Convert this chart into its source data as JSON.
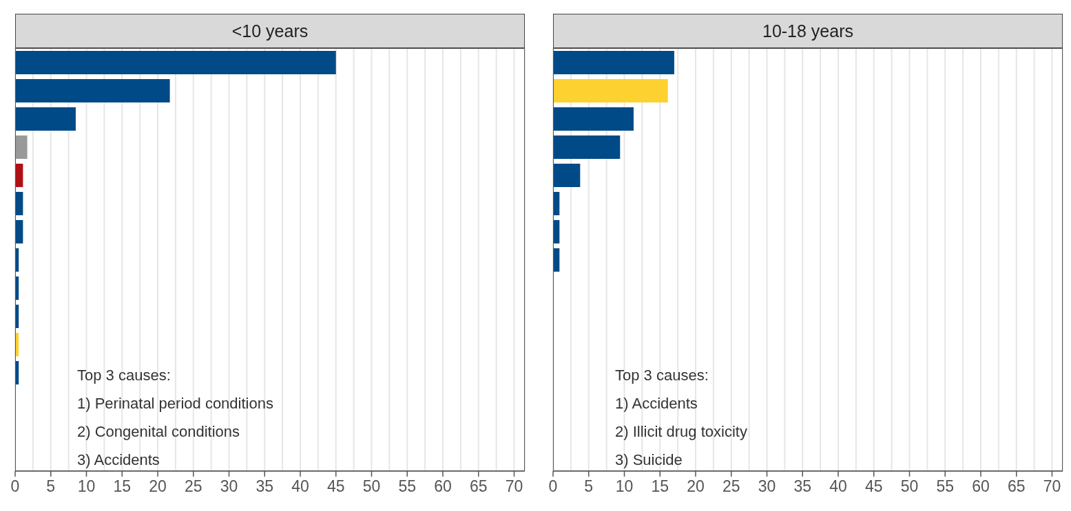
{
  "chart_data": [
    {
      "type": "bar",
      "orientation": "horizontal",
      "title": "<10 years",
      "categories": [
        null,
        null,
        null,
        null,
        null,
        null,
        null,
        null,
        null,
        null,
        null,
        null,
        null,
        null,
        null
      ],
      "values": [
        45,
        21.7,
        8.5,
        1.7,
        1.1,
        1.1,
        1.1,
        0.5,
        0.5,
        0.5,
        0.5,
        0.5,
        null,
        null,
        null
      ],
      "colors": [
        "#004a87",
        "#004a87",
        "#004a87",
        "#999999",
        "#b01116",
        "#004a87",
        "#004a87",
        "#004a87",
        "#004a87",
        "#004a87",
        "#fdd130",
        "#004a87",
        "#004a87",
        "#004a87",
        "#004a87"
      ],
      "xlim": [
        0,
        71.5
      ],
      "xticks": [
        0,
        {
          "value": 2.5,
          "label": null
        },
        5,
        {
          "value": 7.5,
          "label": null
        },
        10,
        {
          "value": 12.5,
          "label": null
        },
        15,
        {
          "value": 17.5,
          "label": null
        },
        20,
        {
          "value": 22.5,
          "label": null
        },
        25,
        {
          "value": 27.5,
          "label": null
        },
        30,
        {
          "value": 32.5,
          "label": null
        },
        35,
        {
          "value": 37.5,
          "label": null
        },
        40,
        {
          "value": 42.5,
          "label": null
        },
        45,
        {
          "value": 47.5,
          "label": null
        },
        50,
        {
          "value": 52.5,
          "label": null
        },
        55,
        {
          "value": 57.5,
          "label": null
        },
        60,
        {
          "value": 62.5,
          "label": null
        },
        65,
        {
          "value": 67.5,
          "label": null
        },
        70
      ],
      "grid": "x",
      "annotations": [
        "Top 3 causes:",
        "1) Perinatal period conditions",
        "2) Congenital conditions",
        "3) Accidents"
      ]
    },
    {
      "type": "bar",
      "orientation": "horizontal",
      "title": "10-18 years",
      "categories": [
        null,
        null,
        null,
        null,
        null,
        null,
        null,
        null,
        null,
        null,
        null,
        null,
        null,
        null,
        null
      ],
      "values": [
        17,
        16.1,
        11.3,
        9.4,
        3.8,
        0.9,
        0.9,
        0.9,
        null,
        null,
        null,
        null,
        null,
        null,
        null
      ],
      "colors": [
        "#004a87",
        "#fdd130",
        "#004a87",
        "#004a87",
        "#004a87",
        "#004a87",
        "#004a87",
        "#004a87",
        "#004a87",
        "#004a87",
        "#004a87",
        "#004a87",
        "#004a87",
        "#004a87",
        "#004a87"
      ],
      "xlim": [
        0,
        71.5
      ],
      "xticks": [
        0,
        {
          "value": 2.5,
          "label": null
        },
        5,
        {
          "value": 7.5,
          "label": null
        },
        10,
        {
          "value": 12.5,
          "label": null
        },
        15,
        {
          "value": 17.5,
          "label": null
        },
        20,
        {
          "value": 22.5,
          "label": null
        },
        25,
        {
          "value": 27.5,
          "label": null
        },
        30,
        {
          "value": 32.5,
          "label": null
        },
        35,
        {
          "value": 37.5,
          "label": null
        },
        40,
        {
          "value": 42.5,
          "label": null
        },
        45,
        {
          "value": 47.5,
          "label": null
        },
        50,
        {
          "value": 52.5,
          "label": null
        },
        55,
        {
          "value": 57.5,
          "label": null
        },
        60,
        {
          "value": 62.5,
          "label": null
        },
        65,
        {
          "value": 67.5,
          "label": null
        },
        70
      ],
      "grid": "x",
      "annotations": [
        "Top 3 causes:",
        "1) Accidents",
        "2) Illicit drug toxicity",
        "3) Suicide"
      ]
    }
  ]
}
